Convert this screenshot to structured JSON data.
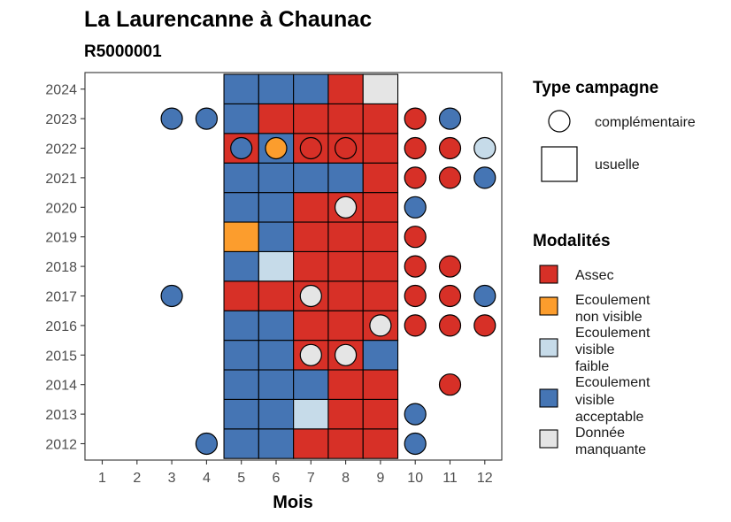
{
  "chart_data": {
    "type": "heatmap",
    "title": "La Laurencanne à Chaunac",
    "subtitle": "R5000001",
    "xlabel": "Mois",
    "ylabel": "",
    "x_ticks": [
      "1",
      "2",
      "3",
      "4",
      "5",
      "6",
      "7",
      "8",
      "9",
      "10",
      "11",
      "12"
    ],
    "y_ticks": [
      "2012",
      "2013",
      "2014",
      "2015",
      "2016",
      "2017",
      "2018",
      "2019",
      "2020",
      "2021",
      "2022",
      "2023",
      "2024"
    ],
    "grid": false,
    "legend_placement": "right",
    "legend_shape": {
      "title": "Type campagne",
      "items": [
        {
          "label": "complémentaire",
          "shape": "circle"
        },
        {
          "label": "usuelle",
          "shape": "square"
        }
      ]
    },
    "legend_fill": {
      "title": "Modalités",
      "items": [
        {
          "key": "assec",
          "lines": [
            "Assec"
          ],
          "color": "#d73027"
        },
        {
          "key": "nonvisible",
          "lines": [
            "Ecoulement",
            "non visible"
          ],
          "color": "#fc9d2d"
        },
        {
          "key": "faible",
          "lines": [
            "Ecoulement",
            "visible",
            "faible"
          ],
          "color": "#c6dbe9"
        },
        {
          "key": "acceptable",
          "lines": [
            "Ecoulement",
            "visible",
            "acceptable"
          ],
          "color": "#4575b4"
        },
        {
          "key": "manquante",
          "lines": [
            "Donnée",
            "manquante"
          ],
          "color": "#e5e5e5"
        }
      ]
    },
    "usuelle": [
      {
        "year": 2012,
        "values": {
          "5": "acceptable",
          "6": "acceptable",
          "7": "assec",
          "8": "assec",
          "9": "assec"
        }
      },
      {
        "year": 2013,
        "values": {
          "5": "acceptable",
          "6": "acceptable",
          "7": "faible",
          "8": "assec",
          "9": "assec"
        }
      },
      {
        "year": 2014,
        "values": {
          "5": "acceptable",
          "6": "acceptable",
          "7": "acceptable",
          "8": "assec",
          "9": "assec"
        }
      },
      {
        "year": 2015,
        "values": {
          "5": "acceptable",
          "6": "acceptable",
          "7": "assec",
          "8": "assec",
          "9": "acceptable"
        }
      },
      {
        "year": 2016,
        "values": {
          "5": "acceptable",
          "6": "acceptable",
          "7": "assec",
          "8": "assec",
          "9": "assec"
        }
      },
      {
        "year": 2017,
        "values": {
          "5": "assec",
          "6": "assec",
          "7": "assec",
          "8": "assec",
          "9": "assec"
        }
      },
      {
        "year": 2018,
        "values": {
          "5": "acceptable",
          "6": "faible",
          "7": "assec",
          "8": "assec",
          "9": "assec"
        }
      },
      {
        "year": 2019,
        "values": {
          "5": "nonvisible",
          "6": "acceptable",
          "7": "assec",
          "8": "assec",
          "9": "assec"
        }
      },
      {
        "year": 2020,
        "values": {
          "5": "acceptable",
          "6": "acceptable",
          "7": "assec",
          "8": "assec",
          "9": "assec"
        }
      },
      {
        "year": 2021,
        "values": {
          "5": "acceptable",
          "6": "acceptable",
          "7": "acceptable",
          "8": "acceptable",
          "9": "assec"
        }
      },
      {
        "year": 2022,
        "values": {
          "5": "assec",
          "6": "acceptable",
          "7": "assec",
          "8": "assec",
          "9": "assec"
        }
      },
      {
        "year": 2023,
        "values": {
          "5": "acceptable",
          "6": "assec",
          "7": "assec",
          "8": "assec",
          "9": "assec"
        }
      },
      {
        "year": 2024,
        "values": {
          "5": "acceptable",
          "6": "acceptable",
          "7": "acceptable",
          "8": "assec",
          "9": "manquante"
        }
      }
    ],
    "complementaire": [
      {
        "year": 2012,
        "values": {
          "4": "acceptable",
          "10": "acceptable"
        }
      },
      {
        "year": 2013,
        "values": {
          "10": "acceptable"
        }
      },
      {
        "year": 2014,
        "values": {
          "11": "assec"
        }
      },
      {
        "year": 2015,
        "values": {
          "7": "manquante",
          "8": "manquante"
        }
      },
      {
        "year": 2016,
        "values": {
          "9": "manquante",
          "10": "assec",
          "11": "assec",
          "12": "assec"
        }
      },
      {
        "year": 2017,
        "values": {
          "3": "acceptable",
          "7": "manquante",
          "10": "assec",
          "11": "assec",
          "12": "acceptable"
        }
      },
      {
        "year": 2018,
        "values": {
          "10": "assec",
          "11": "assec"
        }
      },
      {
        "year": 2019,
        "values": {
          "10": "assec"
        }
      },
      {
        "year": 2020,
        "values": {
          "8": "manquante",
          "10": "acceptable"
        }
      },
      {
        "year": 2021,
        "values": {
          "10": "assec",
          "11": "assec",
          "12": "acceptable"
        }
      },
      {
        "year": 2022,
        "values": {
          "5": "acceptable",
          "6": "nonvisible",
          "7": "assec",
          "8": "assec",
          "10": "assec",
          "11": "assec",
          "12": "faible"
        }
      },
      {
        "year": 2023,
        "values": {
          "3": "acceptable",
          "4": "acceptable",
          "10": "assec",
          "11": "acceptable"
        }
      }
    ]
  }
}
